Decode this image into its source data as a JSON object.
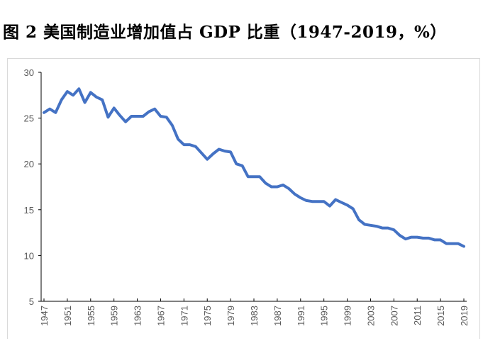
{
  "title": "图 2  美国制造业增加值占 GDP 比重（1947-2019，%）",
  "chart_data": {
    "type": "line",
    "title": "图 2  美国制造业增加值占 GDP 比重（1947-2019，%）",
    "xlabel": "",
    "ylabel": "",
    "ylim": [
      5,
      30
    ],
    "yticks": [
      "5",
      "10",
      "15",
      "20",
      "25",
      "30"
    ],
    "xticks": [
      "1947",
      "1951",
      "1955",
      "1959",
      "1963",
      "1967",
      "1971",
      "1975",
      "1979",
      "1983",
      "1987",
      "1991",
      "1995",
      "1999",
      "2003",
      "2007",
      "2011",
      "2015",
      "2019"
    ],
    "grid": false,
    "line_color": "#4472C4",
    "x_start": 1947,
    "x_end": 2019,
    "values": [
      25.6,
      26.0,
      25.6,
      27.0,
      27.9,
      27.5,
      28.2,
      26.7,
      27.8,
      27.3,
      27.0,
      25.1,
      26.1,
      25.3,
      24.6,
      25.2,
      25.2,
      25.2,
      25.7,
      26.0,
      25.2,
      25.1,
      24.2,
      22.7,
      22.1,
      22.1,
      21.9,
      21.2,
      20.5,
      21.1,
      21.6,
      21.4,
      21.3,
      20.0,
      19.8,
      18.6,
      18.6,
      18.6,
      17.9,
      17.5,
      17.5,
      17.7,
      17.3,
      16.7,
      16.3,
      16.0,
      15.9,
      15.9,
      15.9,
      15.4,
      16.1,
      15.8,
      15.5,
      15.1,
      13.9,
      13.4,
      13.3,
      13.2,
      13.0,
      13.0,
      12.8,
      12.2,
      11.8,
      12.0,
      12.0,
      11.9,
      11.9,
      11.7,
      11.7,
      11.3,
      11.3,
      11.3,
      11.0
    ]
  }
}
